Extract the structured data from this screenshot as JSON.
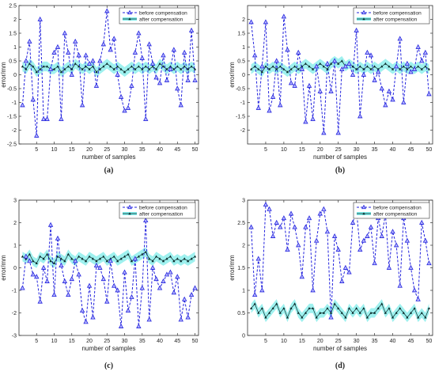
{
  "colors": {
    "before": "#2222dd",
    "before_marker_fill": "#b8b8ff",
    "after": "#0a2a2a",
    "after_band": "#7fecea",
    "axis": "#333333"
  },
  "chart_data": [
    {
      "type": "line",
      "caption": "(a)",
      "xlabel": "number of samples",
      "ylabel": "error/mm",
      "xlim": [
        0,
        51
      ],
      "ylim": [
        -2.5,
        2.5
      ],
      "xticks": [
        5,
        10,
        15,
        20,
        25,
        30,
        35,
        40,
        45,
        50
      ],
      "yticks": [
        -2.5,
        -2,
        -1.5,
        -1,
        -0.5,
        0,
        0.5,
        1,
        1.5,
        2,
        2.5
      ],
      "ytick_labels": [
        "-2.5",
        "-2",
        "-1.5",
        "-1",
        "-0.5",
        "0",
        "0.5",
        "1",
        "1.5",
        "2",
        "2.5"
      ],
      "legend": "top-right",
      "grid": false,
      "series": [
        {
          "name": "before compensation",
          "style": "dashed-triangle",
          "values": [
            -1.1,
            0.5,
            1.2,
            -0.9,
            -2.2,
            2.0,
            -1.6,
            -1.6,
            0.2,
            0.8,
            1.0,
            -1.6,
            1.5,
            0.8,
            0.0,
            1.2,
            0.7,
            -1.1,
            0.7,
            0.4,
            0.5,
            -0.4,
            0.5,
            1.1,
            2.3,
            0.9,
            1.3,
            0.0,
            -0.8,
            -1.3,
            -1.2,
            -0.4,
            0.8,
            1.5,
            0.6,
            -1.6,
            1.1,
            0.4,
            -0.1,
            -0.3,
            0.7,
            -0.2,
            0.2,
            0.9,
            -0.5,
            -1.1,
            0.8,
            -0.2,
            1.6,
            -0.2
          ]
        },
        {
          "name": "after compensation",
          "style": "solid-triangle-band",
          "values": [
            0.3,
            0.2,
            0.4,
            0.3,
            0.1,
            0.2,
            0.3,
            0.3,
            0.2,
            0.2,
            0.3,
            0.1,
            0.2,
            0.3,
            0.2,
            0.4,
            0.3,
            0.2,
            0.3,
            0.2,
            0.3,
            0.1,
            0.2,
            0.3,
            0.4,
            0.3,
            0.2,
            0.3,
            0.2,
            0.1,
            0.2,
            0.3,
            0.2,
            0.3,
            0.2,
            0.3,
            0.2,
            0.3,
            0.2,
            0.4,
            0.3,
            0.2,
            0.3,
            0.2,
            0.3,
            0.2,
            0.3,
            0.2,
            0.3,
            0.2
          ]
        }
      ]
    },
    {
      "type": "line",
      "caption": "(b)",
      "xlabel": "number of samples",
      "ylabel": "error/mm",
      "xlim": [
        0,
        51
      ],
      "ylim": [
        -2.5,
        2.5
      ],
      "xticks": [
        5,
        10,
        15,
        20,
        25,
        30,
        35,
        40,
        45,
        50
      ],
      "yticks": [
        -2,
        -1.5,
        -1,
        -0.5,
        0,
        0.5,
        1,
        1.5,
        2
      ],
      "ytick_labels": [
        "-2",
        "-1.5",
        "-1",
        "-0.5",
        "0",
        "0.5",
        "1",
        "1.5",
        "2"
      ],
      "legend": "top-right",
      "grid": false,
      "series": [
        {
          "name": "before compensation",
          "style": "dashed-triangle",
          "values": [
            1.9,
            0.7,
            -1.2,
            0.3,
            1.9,
            -1.3,
            -0.8,
            0.5,
            -1.1,
            2.1,
            0.9,
            -0.3,
            -0.4,
            0.8,
            0.2,
            -1.7,
            -0.4,
            -1.6,
            0.3,
            -0.6,
            -2.1,
            0.4,
            -0.6,
            0.5,
            -2.1,
            0.2,
            0.3,
            0.4,
            0.0,
            1.6,
            -1.5,
            0.0,
            0.8,
            0.7,
            -0.2,
            0.1,
            -0.5,
            -1.1,
            -0.6,
            -0.9,
            0.3,
            1.3,
            -1.0,
            0.4,
            0.1,
            0.2,
            1.0,
            0.5,
            0.8,
            -0.7
          ]
        },
        {
          "name": "after compensation",
          "style": "solid-triangle-band",
          "values": [
            0.2,
            0.3,
            0.2,
            0.1,
            0.3,
            0.2,
            0.3,
            0.2,
            0.3,
            0.2,
            0.1,
            0.2,
            0.3,
            0.2,
            0.3,
            0.4,
            0.3,
            0.2,
            0.3,
            0.4,
            0.3,
            0.2,
            0.4,
            0.5,
            0.4,
            0.5,
            0.3,
            0.4,
            0.3,
            0.2,
            0.3,
            0.2,
            0.3,
            0.2,
            0.3,
            0.2,
            0.3,
            0.4,
            0.3,
            0.2,
            0.3,
            0.2,
            0.3,
            0.2,
            0.3,
            0.2,
            0.3,
            0.2,
            0.3,
            0.2
          ]
        }
      ]
    },
    {
      "type": "line",
      "caption": "(c)",
      "xlabel": "number of samples",
      "ylabel": "error/mm",
      "xlim": [
        0,
        51
      ],
      "ylim": [
        -3,
        3
      ],
      "xticks": [
        5,
        10,
        15,
        20,
        25,
        30,
        35,
        40,
        45,
        50
      ],
      "yticks": [
        -3,
        -2,
        -1,
        0,
        1,
        2,
        3
      ],
      "ytick_labels": [
        "-3",
        "-2",
        "-1",
        "0",
        "1",
        "2",
        "3"
      ],
      "legend": "top-right",
      "grid": false,
      "series": [
        {
          "name": "before compensation",
          "style": "dashed-triangle",
          "values": [
            -0.9,
            0.5,
            0.3,
            -0.3,
            -0.4,
            -1.5,
            0.0,
            -0.6,
            1.9,
            -1.2,
            1.3,
            0.1,
            -0.6,
            -1.2,
            -0.5,
            0.3,
            -0.3,
            -1.9,
            -2.4,
            -0.8,
            -2.2,
            0.1,
            0.0,
            -0.5,
            -1.5,
            0.3,
            -0.8,
            -1.0,
            -2.6,
            -0.2,
            -1.9,
            -1.3,
            0.4,
            -2.6,
            -0.9,
            2.1,
            -2.3,
            0.0,
            -0.5,
            -0.9,
            -0.6,
            -0.3,
            -0.2,
            -1.1,
            -0.4,
            -2.3,
            -1.4,
            -2.2,
            -1.2,
            -0.9
          ]
        },
        {
          "name": "after compensation",
          "style": "solid-triangle-band",
          "values": [
            0.5,
            0.4,
            0.6,
            0.3,
            0.2,
            0.5,
            0.4,
            0.6,
            0.3,
            0.2,
            0.5,
            0.4,
            0.3,
            0.6,
            0.4,
            0.3,
            0.5,
            0.4,
            0.3,
            0.5,
            0.4,
            0.3,
            0.4,
            0.5,
            0.3,
            0.4,
            0.5,
            0.3,
            0.4,
            0.5,
            0.6,
            0.3,
            0.4,
            0.5,
            0.6,
            0.7,
            0.4,
            0.3,
            0.5,
            0.4,
            0.3,
            0.4,
            0.5,
            0.3,
            0.4,
            0.3,
            0.4,
            0.3,
            0.4,
            0.5
          ]
        }
      ]
    },
    {
      "type": "line",
      "caption": "(d)",
      "xlabel": "number of samples",
      "ylabel": "error/mm",
      "xlim": [
        0,
        51
      ],
      "ylim": [
        0,
        3
      ],
      "xticks": [
        5,
        10,
        15,
        20,
        25,
        30,
        35,
        40,
        45,
        50
      ],
      "yticks": [
        0,
        0.5,
        1,
        1.5,
        2,
        2.5,
        3
      ],
      "ytick_labels": [
        "0",
        "0.5",
        "1",
        "1.5",
        "2",
        "2.5",
        "3"
      ],
      "legend": "top-right",
      "grid": false,
      "series": [
        {
          "name": "before compensation",
          "style": "dashed-triangle",
          "values": [
            2.4,
            0.9,
            1.7,
            1.0,
            2.9,
            2.8,
            2.2,
            2.5,
            2.4,
            2.6,
            1.9,
            2.7,
            2.4,
            2.0,
            1.3,
            2.4,
            2.6,
            1.0,
            2.1,
            2.7,
            2.8,
            2.3,
            0.4,
            2.2,
            1.9,
            1.2,
            1.5,
            1.4,
            2.5,
            2.8,
            1.9,
            2.1,
            2.2,
            2.4,
            1.6,
            2.6,
            2.2,
            2.7,
            1.5,
            2.3,
            2.0,
            1.1,
            2.6,
            2.1,
            1.5,
            1.0,
            0.8,
            2.5,
            2.1,
            1.6
          ]
        },
        {
          "name": "after compensation",
          "style": "solid-triangle-band",
          "values": [
            0.6,
            0.7,
            0.5,
            0.6,
            0.4,
            0.5,
            0.6,
            0.7,
            0.5,
            0.6,
            0.4,
            0.6,
            0.7,
            0.5,
            0.4,
            0.5,
            0.6,
            0.6,
            0.4,
            0.5,
            0.5,
            0.6,
            0.5,
            0.7,
            0.6,
            0.5,
            0.4,
            0.6,
            0.5,
            0.6,
            0.5,
            0.6,
            0.4,
            0.5,
            0.5,
            0.6,
            0.7,
            0.5,
            0.6,
            0.4,
            0.5,
            0.6,
            0.5,
            0.4,
            0.5,
            0.6,
            0.4,
            0.5,
            0.4,
            0.6
          ]
        }
      ]
    }
  ]
}
